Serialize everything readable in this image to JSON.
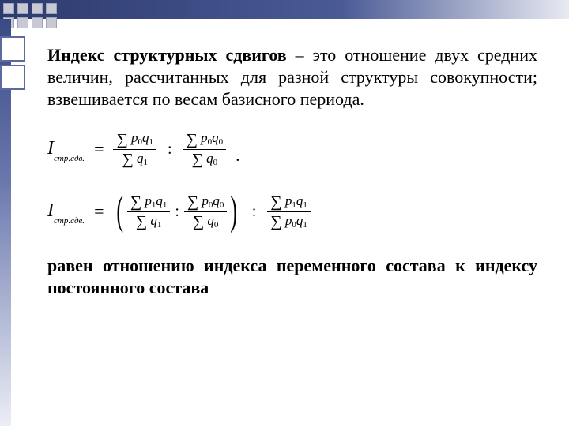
{
  "colors": {
    "navy": "#2c3a6e",
    "navy_light": "#4a5a95",
    "fade": "#e8eaf2",
    "square_fill": "#c8c9d4",
    "square_border": "#9fa2b8",
    "box_border": "#5a6aa2",
    "text": "#000000",
    "bg": "#ffffff"
  },
  "para1": {
    "bold": "Индекс структурных сдвигов",
    "rest": " – это отношение двух средних величин, рассчитанных для разной структуры совокупности; взвешивается по весам базисного периода."
  },
  "formula1": {
    "lhs_symbol": "I",
    "lhs_sub": "стр.сдв.",
    "f1_num": "Σ p₀q₁",
    "f1_den": "Σ q₁",
    "op1": ":",
    "f2_num": "Σ p₀q₀",
    "f2_den": "Σ q₀",
    "tail": "."
  },
  "formula2": {
    "lhs_symbol": "I",
    "lhs_sub": "стр.сдв.",
    "g1_num": "Σ p₁q₁",
    "g1_den": "Σ q₁",
    "op1": ":",
    "g2_num": "Σ p₀q₀",
    "g2_den": "Σ q₀",
    "op2": ":",
    "g3_num": "Σ p₁q₁",
    "g3_den": "Σ p₀q₁"
  },
  "para2": "равен отношению индекса переменного состава к индексу постоянного состава"
}
